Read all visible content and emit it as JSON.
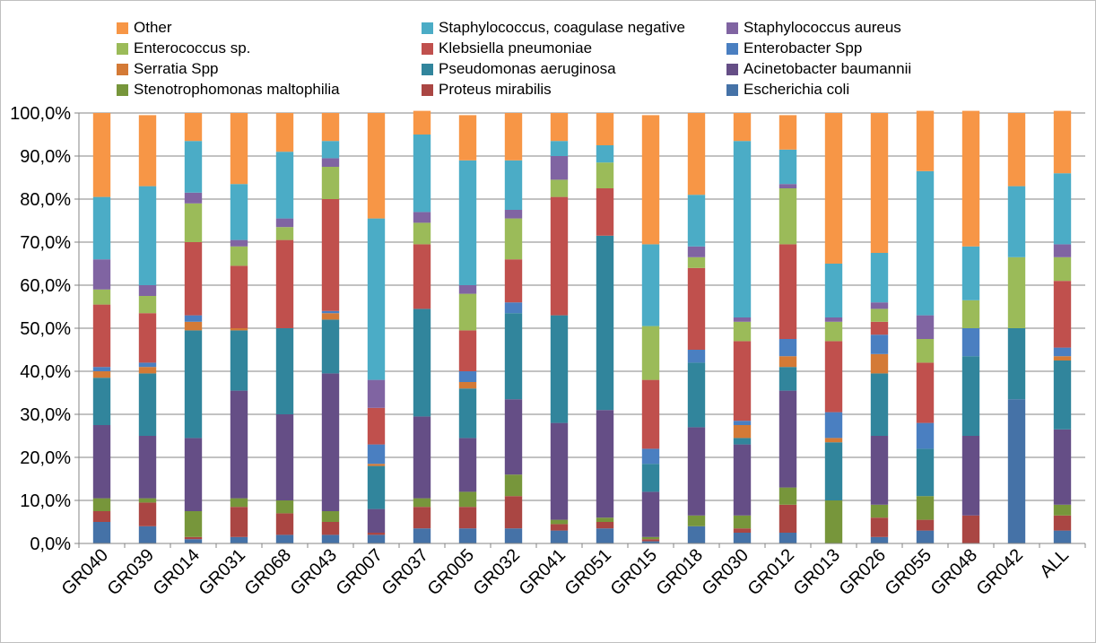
{
  "chart_data": {
    "type": "bar",
    "stacked": true,
    "title": "",
    "xlabel": "",
    "ylabel": "",
    "ylim": [
      0,
      100
    ],
    "yticks": [
      "0,0%",
      "10,0%",
      "20,0%",
      "30,0%",
      "40,0%",
      "50,0%",
      "60,0%",
      "70,0%",
      "80,0%",
      "90,0%",
      "100,0%"
    ],
    "grid": true,
    "legend_position": "top",
    "categories": [
      "GR040",
      "GR039",
      "GR014",
      "GR031",
      "GR068",
      "GR043",
      "GR007",
      "GR037",
      "GR005",
      "GR032",
      "GR041",
      "GR051",
      "GR015",
      "GR018",
      "GR030",
      "GR012",
      "GR013",
      "GR026",
      "GR055",
      "GR048",
      "GR042",
      "ALL"
    ],
    "series": [
      {
        "name": "Escherichia coli",
        "color": "#4572a7",
        "values": [
          5,
          4,
          1,
          1.5,
          2,
          2,
          2,
          3.5,
          3.5,
          3.5,
          3,
          3.5,
          0.5,
          4,
          2.5,
          2.5,
          0,
          1.5,
          3,
          0,
          33.5,
          3
        ]
      },
      {
        "name": "Proteus mirabilis",
        "color": "#aa4643",
        "values": [
          2.5,
          5.5,
          0.5,
          7,
          5,
          3,
          0.5,
          5,
          5,
          7.5,
          1.5,
          1.5,
          0.5,
          0,
          1,
          6.5,
          0,
          4.5,
          2.5,
          6.5,
          0,
          3.5
        ]
      },
      {
        "name": "Stenotrophomonas maltophilia",
        "color": "#77963b",
        "values": [
          3,
          1,
          6,
          2,
          3,
          2.5,
          0,
          2,
          3.5,
          5,
          1,
          1,
          0.5,
          2.5,
          3,
          4,
          10,
          3,
          5.5,
          0,
          0,
          2.5
        ]
      },
      {
        "name": "Acinetobacter baumannii",
        "color": "#654e86",
        "values": [
          17,
          14.5,
          17,
          25,
          20,
          32,
          5.5,
          19,
          12.5,
          17.5,
          22.5,
          25,
          10.5,
          20.5,
          16.5,
          22.5,
          0,
          16,
          0,
          18.5,
          0,
          17.5
        ]
      },
      {
        "name": "Pseudomonas aeruginosa",
        "color": "#31859c",
        "values": [
          11,
          14.5,
          25,
          14,
          20,
          12.5,
          10,
          25,
          11.5,
          20,
          25,
          40.5,
          6.5,
          15,
          1.5,
          5.5,
          13.5,
          14.5,
          11,
          18.5,
          16.5,
          16
        ]
      },
      {
        "name": "Serratia Spp",
        "color": "#d47a36",
        "values": [
          1.5,
          1.5,
          2,
          0.5,
          0,
          1.5,
          0.5,
          0,
          1.5,
          0,
          0,
          0,
          0,
          0,
          3,
          2.5,
          1,
          4.5,
          0,
          0,
          0,
          1
        ]
      },
      {
        "name": "Enterobacter Spp",
        "color": "#4a7fc1",
        "values": [
          1,
          1,
          1.5,
          0,
          0,
          0.5,
          4.5,
          0,
          2.5,
          2.5,
          0,
          0,
          3.5,
          3,
          1,
          4,
          6,
          4.5,
          6,
          6.5,
          0,
          2
        ]
      },
      {
        "name": "Klebsiella pneumoniae",
        "color": "#c0504d",
        "values": [
          14.5,
          11.5,
          17,
          14.5,
          20.5,
          26,
          8.5,
          15,
          9.5,
          10,
          27.5,
          11,
          16,
          19,
          18.5,
          22,
          16.5,
          3,
          14,
          0,
          0,
          15.5
        ]
      },
      {
        "name": "Enterococcus sp.",
        "color": "#9bbb59",
        "values": [
          3.5,
          4,
          9,
          4.5,
          3,
          7.5,
          0,
          5,
          8.5,
          9.5,
          4,
          6,
          12.5,
          2.5,
          4.5,
          13,
          4.5,
          3,
          5.5,
          6.5,
          16.5,
          5.5
        ]
      },
      {
        "name": "Staphylococcus aureus",
        "color": "#8064a2",
        "values": [
          7,
          2.5,
          2.5,
          1.5,
          2,
          2,
          6.5,
          2.5,
          2,
          2,
          5.5,
          0,
          0,
          2.5,
          1,
          1,
          1,
          1.5,
          5.5,
          0,
          0,
          3
        ]
      },
      {
        "name": "Staphylococcus, coagulase negative",
        "color": "#4bacc6",
        "values": [
          14.5,
          23,
          12,
          13,
          15.5,
          4,
          37.5,
          18,
          29,
          11.5,
          3.5,
          4,
          19,
          12,
          41,
          8,
          12.5,
          11.5,
          33.5,
          12.5,
          16.5,
          16.5
        ]
      },
      {
        "name": "Other",
        "color": "#f79646",
        "values": [
          19.5,
          16.5,
          6.5,
          16.5,
          9,
          6.5,
          24.5,
          5.5,
          10.5,
          11,
          6.5,
          7.5,
          30,
          19,
          6.5,
          8,
          35,
          32.5,
          14,
          31.5,
          17,
          14.5
        ]
      }
    ],
    "legend_rows": [
      [
        "Other",
        "Staphylococcus, coagulase negative",
        "Staphylococcus aureus"
      ],
      [
        "Enterococcus sp.",
        "Klebsiella pneumoniae",
        "Enterobacter Spp"
      ],
      [
        "Serratia Spp",
        "Pseudomonas aeruginosa",
        "Acinetobacter baumannii"
      ],
      [
        "Stenotrophomonas maltophilia",
        "Proteus mirabilis",
        "Escherichia coli"
      ]
    ]
  }
}
